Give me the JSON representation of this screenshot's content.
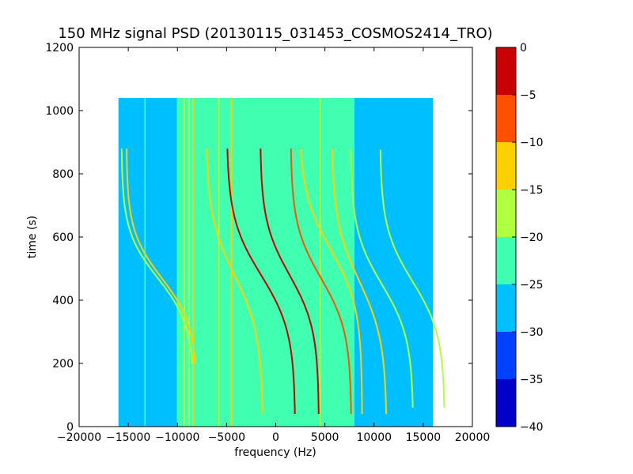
{
  "chart_data": {
    "type": "heatmap",
    "title": "150 MHz signal PSD (20130115_031453_COSMOS2414_TRO)",
    "xlabel": "frequency (Hz)",
    "ylabel": "time (s)",
    "xlim": [
      -20000,
      20000
    ],
    "ylim": [
      0,
      1200
    ],
    "xticks": [
      -20000,
      -15000,
      -10000,
      -5000,
      0,
      5000,
      10000,
      15000,
      20000
    ],
    "yticks": [
      0,
      200,
      400,
      600,
      800,
      1000,
      1200
    ],
    "data_extent": {
      "x": [
        -16000,
        16000
      ],
      "y": [
        0,
        1040
      ]
    },
    "colorbar": {
      "levels": [
        -40,
        -35,
        -30,
        -25,
        -20,
        -15,
        -10,
        -5,
        0
      ],
      "tick_labels": [
        "−40",
        "−35",
        "−30",
        "−25",
        "−20",
        "−15",
        "−10",
        "−5",
        "0"
      ],
      "colors": [
        "#0000c8",
        "#0040ff",
        "#00bfff",
        "#40ffb0",
        "#b0ff40",
        "#ffd000",
        "#ff5000",
        "#c80000"
      ]
    },
    "background_bands": [
      {
        "x": [
          -16000,
          -10000
        ],
        "level": -27
      },
      {
        "x": [
          -10000,
          -9000
        ],
        "level": -22
      },
      {
        "x": [
          -9000,
          7000
        ],
        "level": -22
      },
      {
        "x": [
          7000,
          8000
        ],
        "level": -25
      },
      {
        "x": [
          8000,
          16000
        ],
        "level": -27
      }
    ],
    "vertical_lines": [
      {
        "x": -13300,
        "level": -22
      },
      {
        "x": -10000,
        "level": -22
      },
      {
        "x": -9800,
        "level": -22
      },
      {
        "x": -9300,
        "level": -18
      },
      {
        "x": -8800,
        "level": -18
      },
      {
        "x": -8400,
        "level": -15
      },
      {
        "x": -5800,
        "level": -18
      },
      {
        "x": -4500,
        "level": -15
      },
      {
        "x": -3000,
        "level": -22
      },
      {
        "x": 4500,
        "level": -18
      }
    ],
    "doppler_tracks": [
      {
        "f_center": 1400,
        "t_center": 480,
        "amplitude": 3000,
        "time_scale": 170,
        "t_range": [
          40,
          880
        ],
        "level": -5
      },
      {
        "f_center": -1500,
        "t_center": 480,
        "amplitude": 3500,
        "time_scale": 180,
        "t_range": [
          40,
          880
        ],
        "level": -5
      },
      {
        "f_center": 4600,
        "t_center": 470,
        "amplitude": 3100,
        "time_scale": 170,
        "t_range": [
          40,
          880
        ],
        "level": -7
      },
      {
        "f_center": 5600,
        "t_center": 560,
        "amplitude": 3200,
        "time_scale": 180,
        "t_range": [
          40,
          880
        ],
        "level": -12
      },
      {
        "f_center": -4200,
        "t_center": 480,
        "amplitude": 2900,
        "time_scale": 190,
        "t_range": [
          40,
          880
        ],
        "level": -15
      },
      {
        "f_center": 8500,
        "t_center": 460,
        "amplitude": 2800,
        "time_scale": 190,
        "t_range": [
          40,
          880
        ],
        "level": -15
      },
      {
        "f_center": -12000,
        "t_center": 470,
        "amplitude": 3700,
        "time_scale": 150,
        "t_range": [
          200,
          880
        ],
        "level": -17
      },
      {
        "f_center": -11600,
        "t_center": 470,
        "amplitude": 3600,
        "time_scale": 150,
        "t_range": [
          200,
          880
        ],
        "level": -15
      },
      {
        "f_center": 10800,
        "t_center": 450,
        "amplitude": 3200,
        "time_scale": 170,
        "t_range": [
          60,
          880
        ],
        "level": -17
      },
      {
        "f_center": 13900,
        "t_center": 460,
        "amplitude": 3300,
        "time_scale": 170,
        "t_range": [
          60,
          880
        ],
        "level": -18
      }
    ]
  }
}
